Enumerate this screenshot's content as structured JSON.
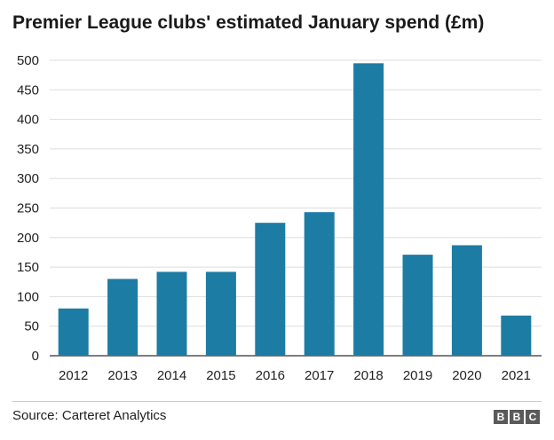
{
  "chart_data": {
    "type": "bar",
    "title": "Premier League clubs' estimated January spend (£m)",
    "categories": [
      "2012",
      "2013",
      "2014",
      "2015",
      "2016",
      "2017",
      "2018",
      "2019",
      "2020",
      "2021"
    ],
    "values": [
      80,
      130,
      142,
      142,
      225,
      243,
      495,
      171,
      187,
      68
    ],
    "xlabel": "",
    "ylabel": "",
    "ylim": [
      0,
      500
    ],
    "yticks": [
      0,
      50,
      100,
      150,
      200,
      250,
      300,
      350,
      400,
      450,
      500
    ],
    "grid": true,
    "bar_color": "#1d7ca4",
    "grid_color": "#dddddd"
  },
  "footer": {
    "source": "Source: Carteret Analytics",
    "logo_letters": [
      "B",
      "B",
      "C"
    ]
  }
}
